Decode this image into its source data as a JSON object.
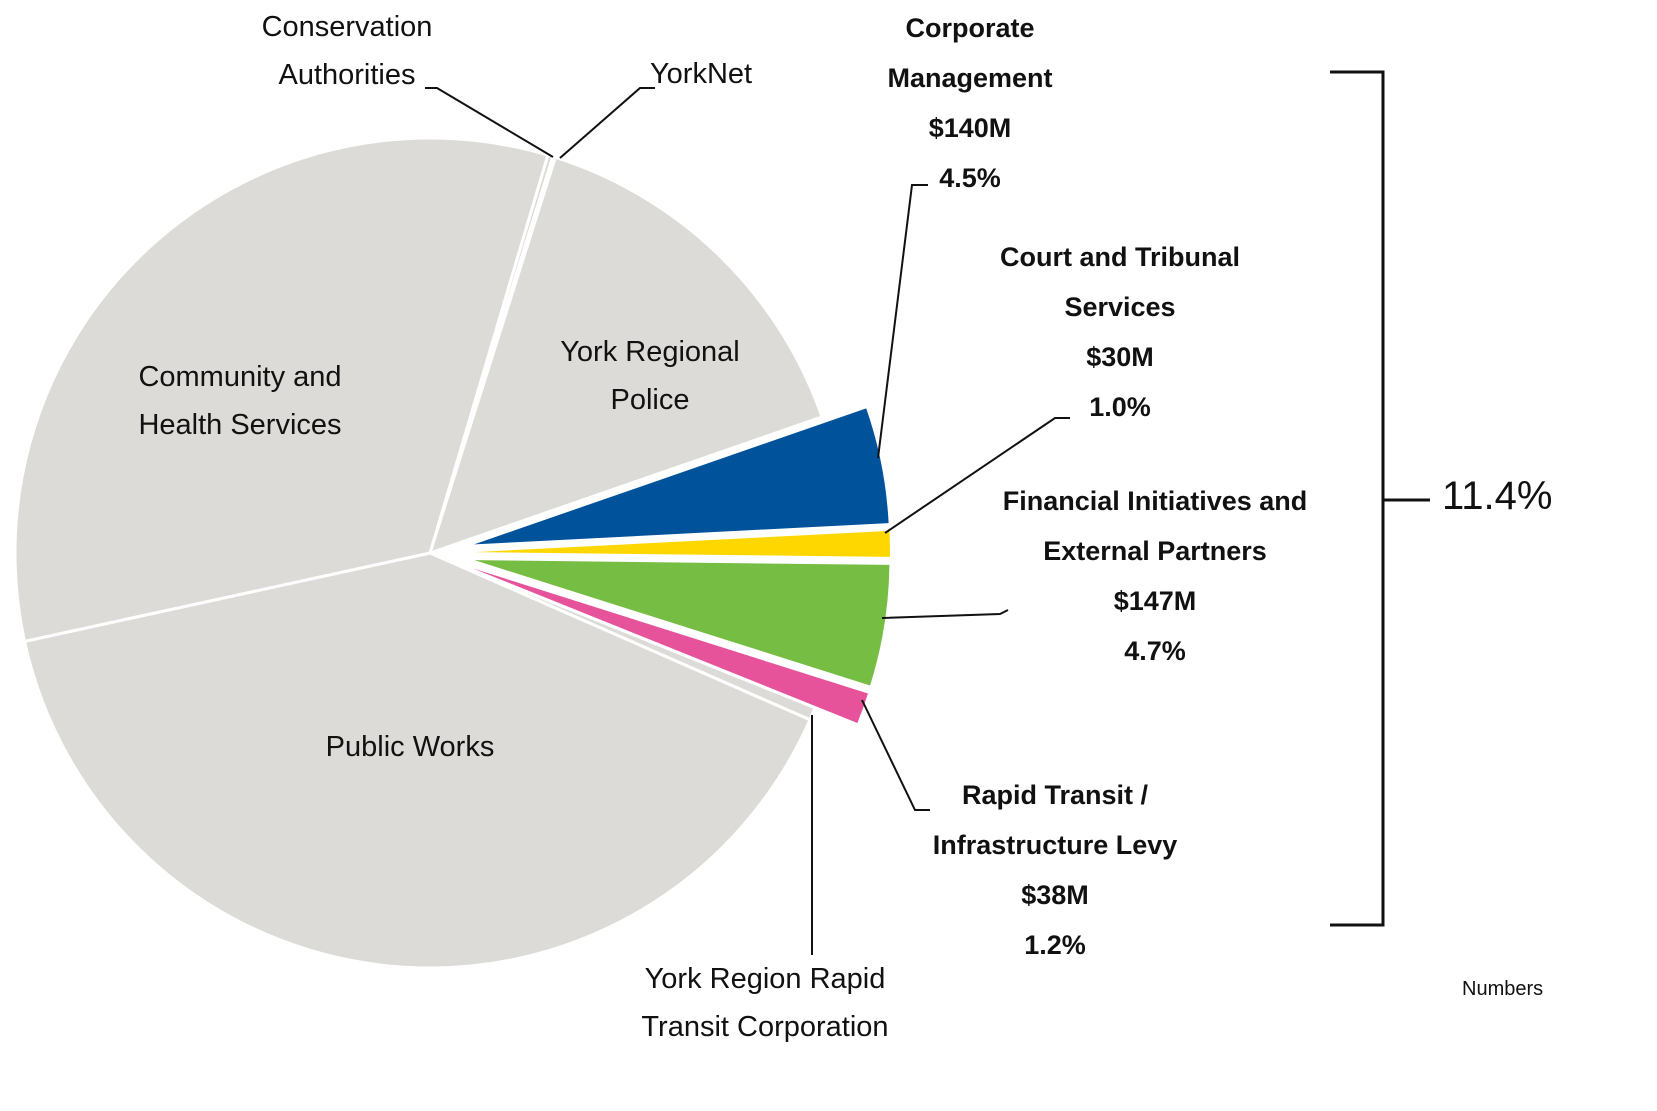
{
  "chart_data": {
    "type": "pie",
    "categories": [
      "Conservation Authorities",
      "YorkNet",
      "York Regional Police",
      "Corporate Management",
      "Court and Tribunal Services",
      "Financial Initiatives and External Partners",
      "Rapid Transit / Infrastructure Levy",
      "York Region Rapid Transit Corporation",
      "Public Works",
      "Community and Health Services"
    ],
    "values": [
      0.2,
      0.1,
      14.8,
      4.5,
      1.0,
      4.7,
      1.2,
      0.5,
      40.0,
      33.0
    ],
    "value_labels": [
      null,
      null,
      null,
      "4.5%",
      "1.0%",
      "4.7%",
      "1.2%",
      null,
      null,
      null
    ],
    "amounts": [
      null,
      null,
      null,
      "$140M",
      "$30M",
      "$147M",
      "$38M",
      null,
      null,
      null
    ],
    "colors": [
      "#dcdbd8",
      "#dcdbd8",
      "#dcdbd8",
      "#00529b",
      "#ffd700",
      "#76bd43",
      "#e6539b",
      "#dcdbd8",
      "#dcdbd8",
      "#dcdbd8"
    ],
    "bracket_label": "11.4%",
    "note": "Numbers"
  }
}
